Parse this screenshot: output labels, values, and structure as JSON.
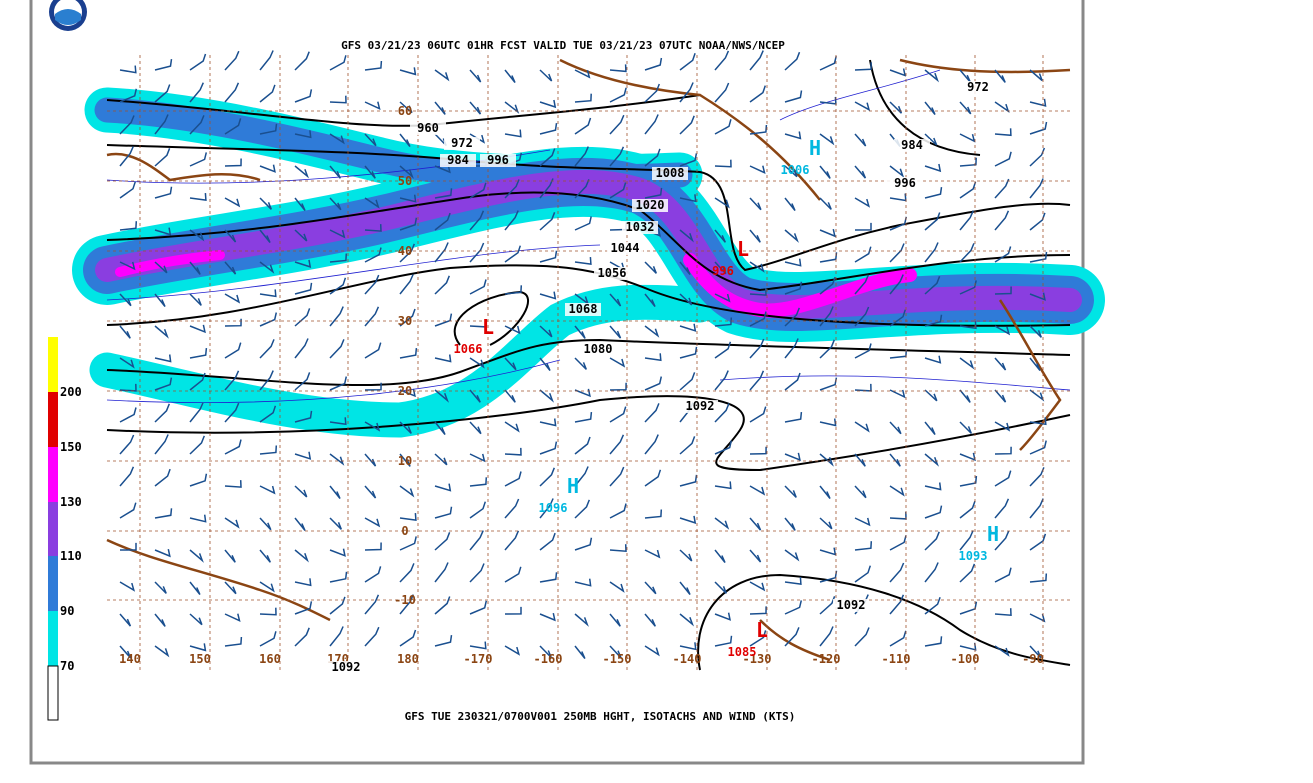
{
  "header": {
    "title": "GFS 03/21/23 06UTC 01HR FCST VALID TUE 03/21/23 07UTC NOAA/NWS/NCEP"
  },
  "footer": {
    "caption": "GFS TUE 230321/0700V001 250MB HGHT, ISOTACHS AND WIND (KTS)"
  },
  "colorbar": {
    "labels": [
      "200",
      "150",
      "130",
      "110",
      "90",
      "70"
    ]
  },
  "map": {
    "lon_labels": [
      "140",
      "150",
      "160",
      "170",
      "180",
      "-170",
      "-160",
      "-150",
      "-140",
      "-130",
      "-120",
      "-110",
      "-100",
      "-90"
    ],
    "lat_labels": [
      "60",
      "50",
      "40",
      "30",
      "20",
      "10",
      "0",
      "-10"
    ],
    "contour_labels": [
      "960",
      "972",
      "984",
      "996",
      "1008",
      "1020",
      "1032",
      "1044",
      "1056",
      "1068",
      "1080",
      "1092",
      "972",
      "984",
      "996",
      "1092",
      "1092"
    ],
    "centers": [
      {
        "symbol": "H",
        "value": "1006"
      },
      {
        "symbol": "L",
        "value": "996"
      },
      {
        "symbol": "L",
        "value": "1066"
      },
      {
        "symbol": "H",
        "value": "1096"
      },
      {
        "symbol": "H",
        "value": "1093"
      },
      {
        "symbol": "L",
        "value": "1085"
      }
    ]
  }
}
